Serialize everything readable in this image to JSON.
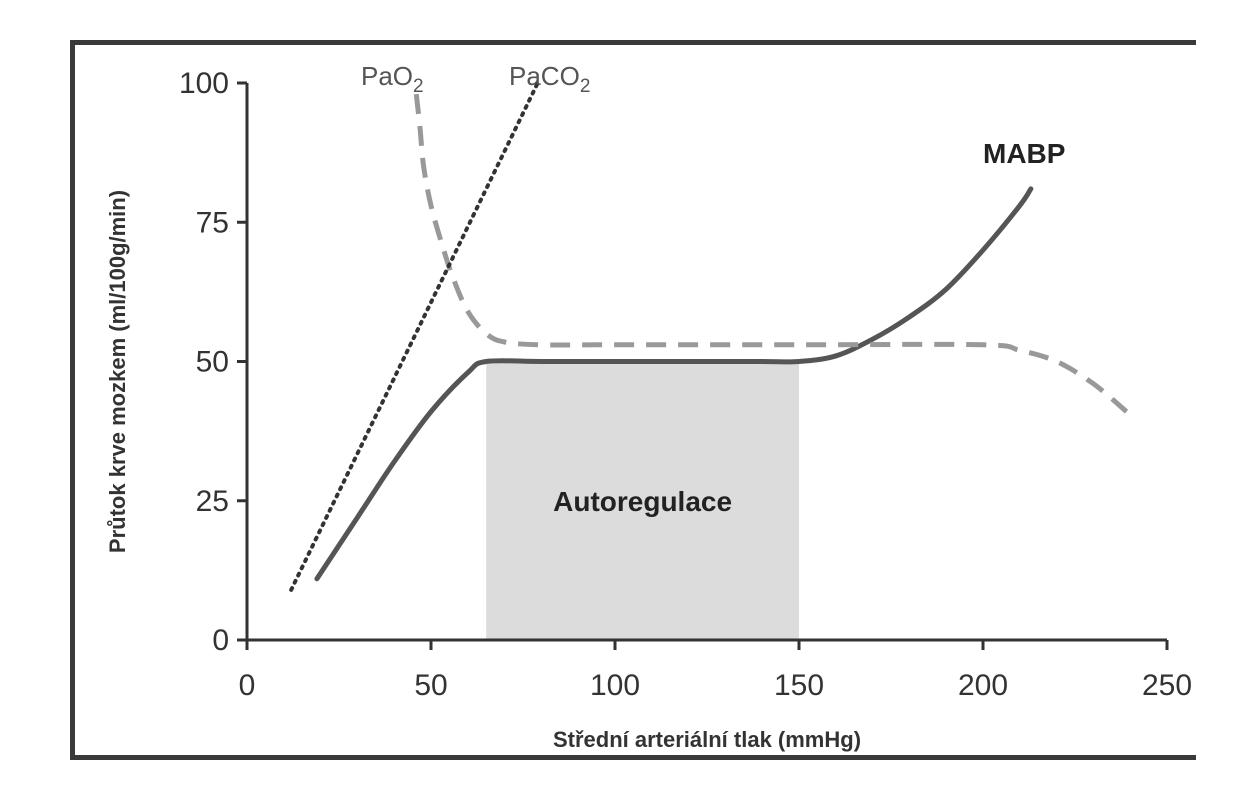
{
  "chart_data": {
    "type": "line",
    "xlabel": "Střední arteriální tlak (mmHg)",
    "ylabel": "Průtok krve mozkem (ml/100g/min)",
    "xlim": [
      0,
      250
    ],
    "ylim": [
      0,
      100
    ],
    "x_ticks": [
      0,
      50,
      100,
      150,
      200,
      250
    ],
    "y_ticks": [
      0,
      25,
      50,
      75,
      100
    ],
    "x_tick_labels": [
      "0",
      "50",
      "100",
      "150",
      "200",
      "250"
    ],
    "y_tick_labels": [
      "0",
      "25",
      "50",
      "75",
      "100"
    ],
    "grid": false,
    "region": {
      "label": "Autoregulace",
      "x_start": 65,
      "x_end": 150,
      "y_start": 0,
      "y_end": 50,
      "color": "#dcdcdc"
    },
    "series": [
      {
        "name": "MABP",
        "style": "solid",
        "color": "#555555",
        "x": [
          19,
          30,
          40,
          50,
          60,
          65,
          80,
          100,
          120,
          140,
          150,
          160,
          170,
          180,
          190,
          200,
          210,
          213
        ],
        "y": [
          11,
          22,
          32,
          41,
          48,
          50,
          50,
          50,
          50,
          50,
          50,
          51,
          54,
          58,
          63,
          70,
          78,
          81
        ]
      },
      {
        "name": "PaO",
        "name_sub": "2",
        "style": "dashed",
        "color": "#999999",
        "x": [
          46,
          47,
          48,
          50,
          53,
          56,
          60,
          65,
          70,
          80,
          100,
          150,
          200,
          210,
          220,
          230,
          239
        ],
        "y": [
          98,
          92,
          85,
          78,
          71,
          65,
          59,
          55,
          53.5,
          53,
          53,
          53,
          53,
          52,
          50,
          46,
          41
        ]
      },
      {
        "name": "PaCO",
        "name_sub": "2",
        "style": "dotted",
        "color": "#333333",
        "x": [
          12,
          79
        ],
        "y": [
          9,
          100
        ]
      }
    ]
  }
}
